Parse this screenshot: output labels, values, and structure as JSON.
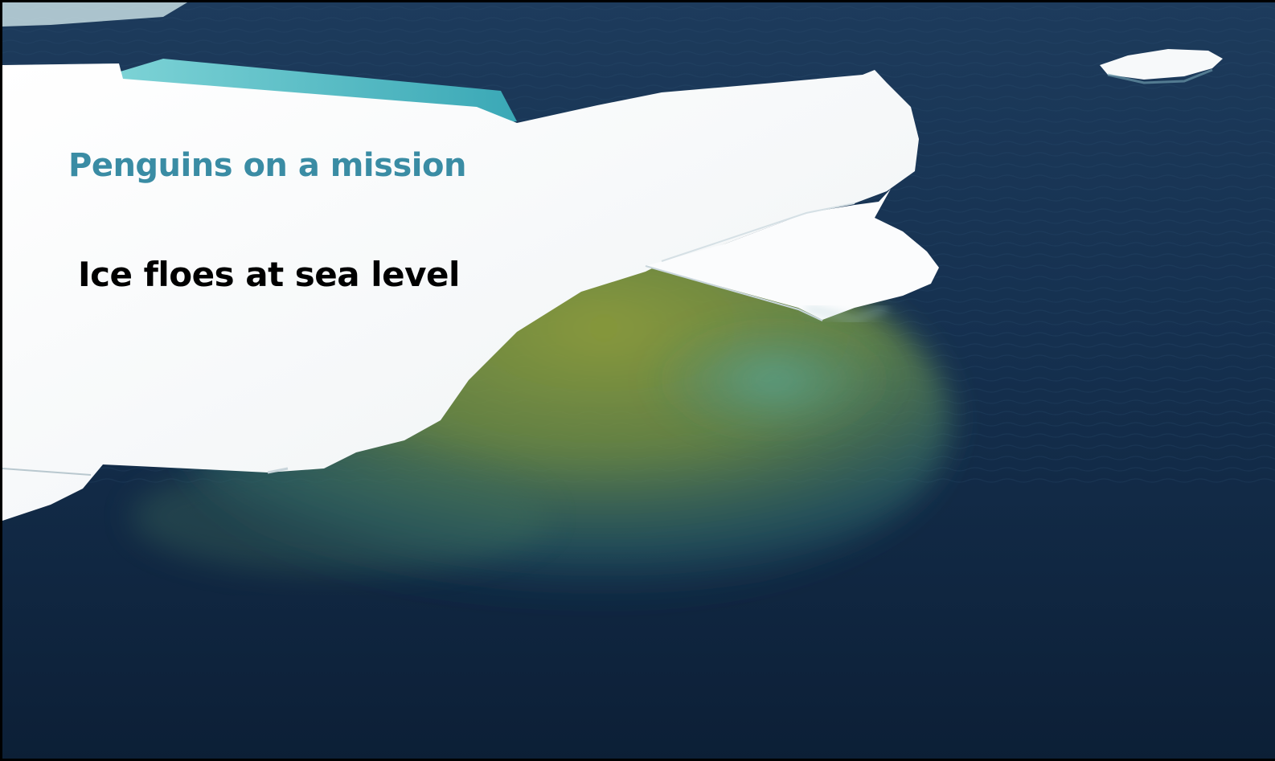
{
  "slide": {
    "subtitle": "Penguins on a mission",
    "caption": "Ice floes at sea level"
  },
  "colors": {
    "subtitle_text": "#3a8ca4",
    "caption_text": "#000000",
    "ocean_deep": "#0f2540",
    "ocean_mid": "#1c3a5c",
    "ice": "#f6f8f9",
    "meltwater": "#5fc0c8",
    "algae_submerged": "#8a9a3c",
    "slide_border": "#000000"
  }
}
